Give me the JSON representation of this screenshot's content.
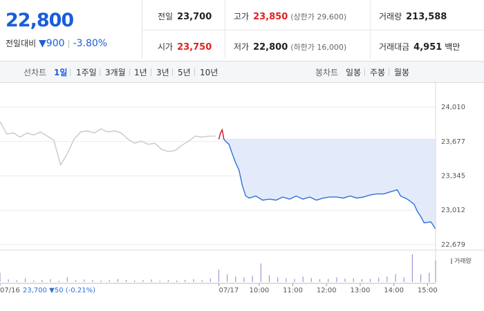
{
  "header": {
    "price": "22,800",
    "change_label": "전일대비",
    "change": "900",
    "change_pct": "-3.80%",
    "stats": [
      {
        "label": "전일",
        "value": "23,700"
      },
      {
        "label": "고가",
        "value": "23,850",
        "note": "(상한가 29,600)"
      },
      {
        "label": "거래량",
        "value": "213,588"
      },
      {
        "label": "시가",
        "value": "23,750"
      },
      {
        "label": "저가",
        "value": "22,800",
        "note": "(하한가 16,000)"
      },
      {
        "label": "거래대금",
        "value": "4,951",
        "unit": "백만"
      }
    ]
  },
  "tabs": {
    "line_label": "선차트",
    "periods": [
      "1일",
      "1주일",
      "3개월",
      "1년",
      "3년",
      "5년",
      "10년"
    ],
    "candle_label": "봉차트",
    "candle_periods": [
      "일봉",
      "주봉",
      "월봉"
    ]
  },
  "chart_data": {
    "type": "line",
    "ylim": [
      22679,
      24010
    ],
    "yticks": [
      {
        "value": 24010,
        "label": "24,010"
      },
      {
        "value": 23677,
        "label": "23,677"
      },
      {
        "value": 23345,
        "label": "23,345"
      },
      {
        "value": 23012,
        "label": "23,012"
      },
      {
        "value": 22679,
        "label": "22,679"
      }
    ],
    "xlim": [
      0,
      12.94
    ],
    "xticks": [
      {
        "value": 0,
        "label": "07/16"
      },
      {
        "value": 6.5,
        "label": "07/17"
      },
      {
        "value": 7.7,
        "label": "10:00"
      },
      {
        "value": 8.7,
        "label": "11:00"
      },
      {
        "value": 9.7,
        "label": "12:00"
      },
      {
        "value": 10.7,
        "label": "13:00"
      },
      {
        "value": 11.7,
        "label": "14:00"
      },
      {
        "value": 12.7,
        "label": "15:00"
      }
    ],
    "grid": true,
    "baseline": 23700,
    "series": [
      {
        "color": "#c8c8c8",
        "x": [
          0,
          0.2,
          0.4,
          0.6,
          0.8,
          1.0,
          1.2,
          1.4,
          1.6,
          1.8,
          2.0,
          2.2,
          2.4,
          2.6,
          2.8,
          3.0,
          3.2,
          3.4,
          3.6,
          3.8,
          4.0,
          4.2,
          4.4,
          4.6,
          4.8,
          5.0,
          5.2,
          5.4,
          5.6,
          5.8,
          6.0,
          6.2,
          6.4
        ],
        "values": [
          23870,
          23750,
          23760,
          23720,
          23760,
          23740,
          23770,
          23730,
          23690,
          23450,
          23560,
          23700,
          23770,
          23780,
          23760,
          23800,
          23770,
          23780,
          23760,
          23700,
          23660,
          23680,
          23650,
          23660,
          23600,
          23580,
          23590,
          23640,
          23680,
          23730,
          23720,
          23730,
          23730
        ]
      },
      {
        "color": "#2f6fd6",
        "up_color": "#e5202b",
        "area_color": "#e3ebfa",
        "x": [
          6.5,
          6.55,
          6.6,
          6.65,
          6.7,
          6.8,
          6.9,
          7.0,
          7.1,
          7.2,
          7.3,
          7.4,
          7.6,
          7.8,
          8.0,
          8.2,
          8.4,
          8.6,
          8.8,
          9.0,
          9.2,
          9.4,
          9.6,
          9.8,
          10.0,
          10.2,
          10.4,
          10.6,
          10.8,
          11.0,
          11.2,
          11.4,
          11.6,
          11.8,
          11.9,
          12.1,
          12.3,
          12.4,
          12.5,
          12.6,
          12.8,
          12.94
        ],
        "values": [
          23700,
          23760,
          23790,
          23700,
          23680,
          23650,
          23560,
          23470,
          23400,
          23250,
          23150,
          23130,
          23150,
          23110,
          23120,
          23110,
          23140,
          23120,
          23150,
          23120,
          23140,
          23110,
          23130,
          23140,
          23140,
          23130,
          23150,
          23130,
          23140,
          23160,
          23170,
          23170,
          23190,
          23210,
          23150,
          23120,
          23070,
          23000,
          22950,
          22890,
          22900,
          22830
        ]
      }
    ],
    "volume": {
      "name": "거래량",
      "color": "#a493d6",
      "x": [
        0,
        0.25,
        0.5,
        0.75,
        1.0,
        1.25,
        1.5,
        1.75,
        2.0,
        2.25,
        2.5,
        2.75,
        3.0,
        3.25,
        3.5,
        3.75,
        4.0,
        4.25,
        4.5,
        4.75,
        5.0,
        5.25,
        5.5,
        5.75,
        6.0,
        6.25,
        6.5,
        6.75,
        7.0,
        7.25,
        7.5,
        7.75,
        8.0,
        8.25,
        8.5,
        8.75,
        9.0,
        9.25,
        9.5,
        9.75,
        10.0,
        10.25,
        10.5,
        10.75,
        11.0,
        11.25,
        11.5,
        11.75,
        12.0,
        12.25,
        12.5,
        12.75,
        12.94
      ],
      "values": [
        3000,
        800,
        600,
        1200,
        500,
        700,
        900,
        400,
        1500,
        600,
        800,
        700,
        500,
        600,
        1000,
        700,
        500,
        600,
        800,
        400,
        600,
        500,
        700,
        900,
        600,
        1200,
        4000,
        2500,
        1800,
        1500,
        2000,
        6000,
        2200,
        1500,
        1200,
        1000,
        1800,
        1300,
        900,
        1000,
        1500,
        1100,
        1200,
        900,
        1000,
        1400,
        1800,
        2500,
        1500,
        9000,
        2500,
        3000,
        7000
      ]
    },
    "prev_day_summary": {
      "close": "23,700",
      "change": "50",
      "change_pct": "(-0.21%)"
    }
  }
}
